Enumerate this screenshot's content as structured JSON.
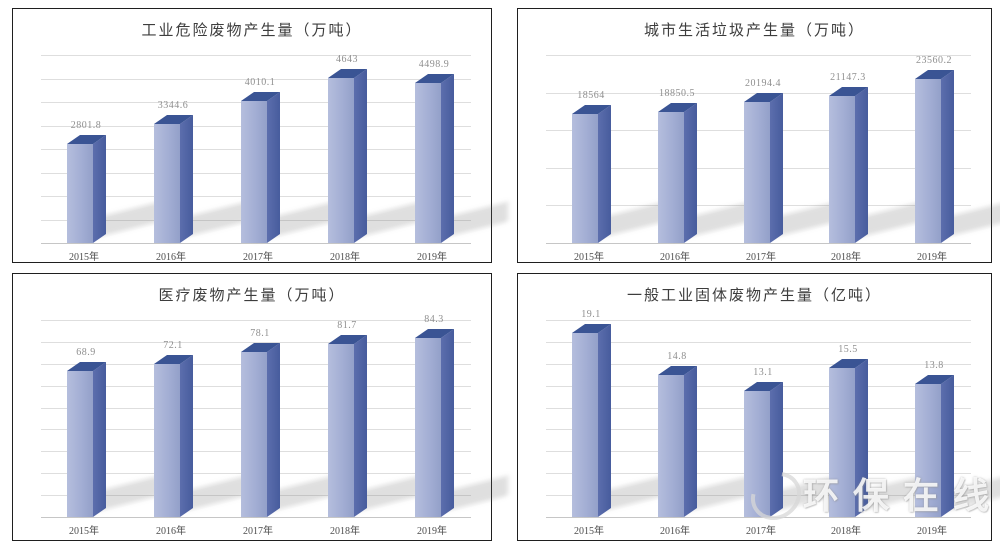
{
  "watermark": {
    "text": "环保在线"
  },
  "colors": {
    "bar_front": "#a3aed4",
    "bar_side": "#475c9d",
    "bar_top": "#3a5494",
    "gridline": "#dedede",
    "panel_border": "#1f1f1f",
    "value_label": "#8f8f8f",
    "year_label": "#4d4d4d"
  },
  "chart_data": [
    {
      "type": "bar",
      "title": "工业危险废物产生量（万吨）",
      "categories": [
        "2015年",
        "2016年",
        "2017年",
        "2018年",
        "2019年"
      ],
      "values": [
        2801.8,
        3344.6,
        4010.1,
        4643,
        4498.9
      ],
      "value_labels": [
        "2801.8",
        "3344.6",
        "4010.1",
        "4643",
        "4498.9"
      ],
      "xlabel": "",
      "ylabel": "",
      "ylim": [
        0,
        5300
      ],
      "grid_intervals": 8,
      "legend": "none",
      "grid": "on"
    },
    {
      "type": "bar",
      "title": "城市生活垃圾产生量（万吨）",
      "categories": [
        "2015年",
        "2016年",
        "2017年",
        "2018年",
        "2019年"
      ],
      "values": [
        18564,
        18850.5,
        20194.4,
        21147.3,
        23560.2
      ],
      "value_labels": [
        "18564",
        "18850.5",
        "20194.4",
        "21147.3",
        "23560.2"
      ],
      "xlabel": "",
      "ylabel": "",
      "ylim": [
        0,
        27000
      ],
      "grid_intervals": 5,
      "legend": "none",
      "grid": "on"
    },
    {
      "type": "bar",
      "title": "医疗废物产生量（万吨）",
      "categories": [
        "2015年",
        "2016年",
        "2017年",
        "2018年",
        "2019年"
      ],
      "values": [
        68.9,
        72.1,
        78.1,
        81.7,
        84.3
      ],
      "value_labels": [
        "68.9",
        "72.1",
        "78.1",
        "81.7",
        "84.3"
      ],
      "xlabel": "",
      "ylabel": "",
      "ylim": [
        0,
        93
      ],
      "grid_intervals": 9,
      "legend": "none",
      "grid": "on"
    },
    {
      "type": "bar",
      "title": "一般工业固体废物产生量（亿吨）",
      "categories": [
        "2015年",
        "2016年",
        "2017年",
        "2018年",
        "2019年"
      ],
      "values": [
        19.1,
        14.8,
        13.1,
        15.5,
        13.8
      ],
      "value_labels": [
        "19.1",
        "14.8",
        "13.1",
        "15.5",
        "13.8"
      ],
      "xlabel": "",
      "ylabel": "",
      "ylim": [
        0,
        20.5
      ],
      "grid_intervals": 9,
      "legend": "none",
      "grid": "on"
    }
  ]
}
